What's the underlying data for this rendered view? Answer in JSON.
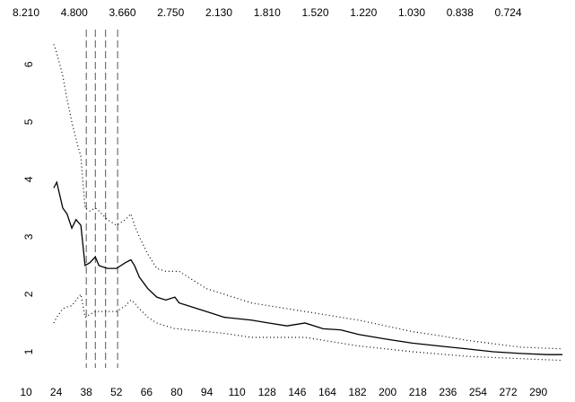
{
  "chart_data": {
    "type": "line",
    "x": [
      5.6,
      6.1,
      7.1,
      7.8,
      8.6,
      9.3,
      10.1,
      10.8,
      11.6,
      12.5,
      13.1,
      14.5,
      16.0,
      17.5,
      18.4,
      19.0,
      19.8,
      21.2,
      22.7,
      24.2,
      25.7,
      26.4,
      27.9,
      30.9,
      33.9,
      38.4,
      41.3,
      44.3,
      47.3,
      50.3,
      53.2,
      56.2,
      60.7,
      65.1,
      69.6,
      74.1,
      78.5,
      83.0,
      87.5,
      90.0
    ],
    "series": [
      {
        "color": "#000000",
        "dash": "solid",
        "values": [
          3.85,
          3.95,
          3.5,
          3.4,
          3.15,
          3.3,
          3.2,
          2.5,
          2.55,
          2.65,
          2.5,
          2.45,
          2.45,
          2.55,
          2.6,
          2.5,
          2.3,
          2.1,
          1.95,
          1.9,
          1.95,
          1.85,
          1.8,
          1.7,
          1.6,
          1.55,
          1.5,
          1.45,
          1.5,
          1.4,
          1.38,
          1.3,
          1.22,
          1.15,
          1.1,
          1.05,
          1.0,
          0.97,
          0.95,
          0.95
        ]
      },
      {
        "color": "#000000",
        "dash": "dotted",
        "values": [
          6.35,
          6.2,
          5.8,
          5.4,
          5.0,
          4.7,
          4.4,
          3.5,
          3.45,
          3.5,
          3.45,
          3.3,
          3.2,
          3.3,
          3.4,
          3.2,
          3.0,
          2.7,
          2.45,
          2.4,
          2.4,
          2.4,
          2.3,
          2.1,
          2.0,
          1.85,
          1.8,
          1.75,
          1.7,
          1.65,
          1.6,
          1.55,
          1.45,
          1.35,
          1.28,
          1.2,
          1.14,
          1.08,
          1.06,
          1.05
        ]
      },
      {
        "color": "#000000",
        "dash": "dotted",
        "values": [
          1.5,
          1.6,
          1.75,
          1.78,
          1.8,
          1.9,
          2.0,
          1.6,
          1.65,
          1.7,
          1.7,
          1.7,
          1.7,
          1.8,
          1.9,
          1.85,
          1.75,
          1.6,
          1.5,
          1.45,
          1.4,
          1.4,
          1.38,
          1.35,
          1.32,
          1.25,
          1.25,
          1.25,
          1.25,
          1.2,
          1.15,
          1.1,
          1.05,
          1.0,
          0.96,
          0.92,
          0.9,
          0.88,
          0.86,
          0.85
        ]
      }
    ],
    "vlines": [
      11.0,
      12.5,
      14.2,
      16.2
    ],
    "xlim": [
      1,
      90
    ],
    "ylim": [
      0.75,
      6.45
    ],
    "yticks": [
      1,
      2,
      3,
      4,
      5,
      6
    ],
    "xticks": [
      {
        "value": 1,
        "label": "10"
      },
      {
        "value": 6,
        "label": "24"
      },
      {
        "value": 11,
        "label": "38"
      },
      {
        "value": 16,
        "label": "52"
      },
      {
        "value": 21,
        "label": "66"
      },
      {
        "value": 26,
        "label": "80"
      },
      {
        "value": 31,
        "label": "94"
      },
      {
        "value": 36,
        "label": "110"
      },
      {
        "value": 41,
        "label": "128"
      },
      {
        "value": 46,
        "label": "146"
      },
      {
        "value": 51,
        "label": "164"
      },
      {
        "value": 56,
        "label": "182"
      },
      {
        "value": 61,
        "label": "200"
      },
      {
        "value": 66,
        "label": "218"
      },
      {
        "value": 71,
        "label": "236"
      },
      {
        "value": 76,
        "label": "254"
      },
      {
        "value": 81,
        "label": "272"
      },
      {
        "value": 86,
        "label": "290"
      }
    ],
    "x2ticks": [
      {
        "value": 1,
        "label": "8.210"
      },
      {
        "value": 9,
        "label": "4.800"
      },
      {
        "value": 17,
        "label": "3.660"
      },
      {
        "value": 25,
        "label": "2.750"
      },
      {
        "value": 33,
        "label": "2.130"
      },
      {
        "value": 41,
        "label": "1.810"
      },
      {
        "value": 49,
        "label": "1.520"
      },
      {
        "value": 57,
        "label": "1.220"
      },
      {
        "value": 65,
        "label": "1.030"
      },
      {
        "value": 73,
        "label": "0.838"
      },
      {
        "value": 81,
        "label": "0.724"
      }
    ]
  }
}
